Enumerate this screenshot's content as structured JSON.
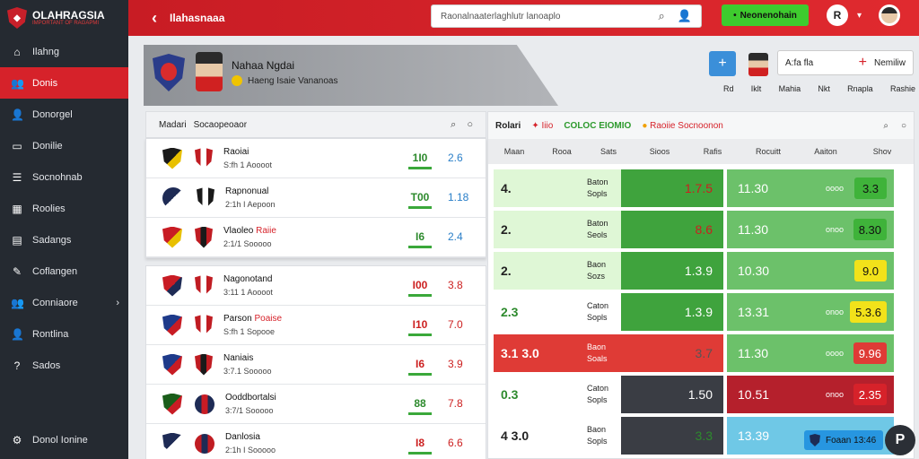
{
  "app": {
    "logo_text": "OLAHRAGSIA",
    "logo_sub": "IMPORTANT OF RAGAPMI",
    "top_title": "Ilahasnaaa"
  },
  "sidebar": {
    "items": [
      {
        "label": "Ilahng",
        "icon": "home-icon",
        "glyph": "⌂"
      },
      {
        "label": "Donis",
        "icon": "people-icon",
        "glyph": "👥"
      },
      {
        "label": "Donorgel",
        "icon": "user-icon",
        "glyph": "👤"
      },
      {
        "label": "Donilie",
        "icon": "card-icon",
        "glyph": "▭"
      },
      {
        "label": "Socnohnab",
        "icon": "list-icon",
        "glyph": "☰"
      },
      {
        "label": "Roolies",
        "icon": "calendar-icon",
        "glyph": "▦"
      },
      {
        "label": "Sadangs",
        "icon": "inbox-icon",
        "glyph": "▤"
      },
      {
        "label": "Coflangen",
        "icon": "tool-icon",
        "glyph": "✎"
      },
      {
        "label": "Conniaore",
        "icon": "group-icon",
        "glyph": "👥"
      },
      {
        "label": "Rontlina",
        "icon": "profile-icon",
        "glyph": "👤"
      },
      {
        "label": "Sados",
        "icon": "help-icon",
        "glyph": "?"
      }
    ],
    "bottom": {
      "label": "Donol Ionine",
      "icon": "settings-icon",
      "glyph": "⚙"
    }
  },
  "topbar": {
    "search_placeholder": "Raonalnaaterlaghlutr lanoaplo",
    "button_label": "Neonenohain",
    "user_initial": "R"
  },
  "hero": {
    "name": "Nahaa Ngdai",
    "sub": "Haeng Isaie Vananoas"
  },
  "controls": {
    "box_text": "A:fa fla",
    "box_right": "Nemiliw",
    "labels": [
      "Rd",
      "Iklt",
      "Mahia",
      "Nkt",
      "Rnapla",
      "Rashie"
    ]
  },
  "left_panel": {
    "header": [
      "Madari",
      "Socaopeoaor"
    ],
    "card1": [
      {
        "t1": "Raoiai",
        "t1_red": "",
        "t2": "S:fh 1 Aoooot",
        "box": "1I0",
        "box_color": "g",
        "val": "2.6",
        "val_color": "b",
        "b1": [
          "#1a1a1a",
          "#e8c000"
        ],
        "b2": [
          "#c01c22",
          "#ffffff"
        ]
      },
      {
        "t1": "Rapnonual",
        "t1_red": "",
        "t2": "2:1h I Aepoon",
        "box": "T00",
        "box_color": "g",
        "val": "1.18",
        "val_color": "b",
        "b1": [
          "#1e2b55",
          "#ffffff"
        ],
        "b2": [
          "#1a1a1a",
          "#ffffff"
        ],
        "round": true
      },
      {
        "t1": "Vlaoleo",
        "t1_red": "Raiie",
        "t2": "2:1/1 Sooooo",
        "box": "I6",
        "box_color": "g",
        "val": "2.4",
        "val_color": "b",
        "b1": [
          "#c81c24",
          "#e8c000"
        ],
        "b2": [
          "#c01c22",
          "#1a1a1a"
        ]
      }
    ],
    "card2": [
      {
        "t1": "Nagonotand",
        "t1_red": "",
        "t2": "3:11 1 Aoooot",
        "box": "I00",
        "box_color": "r",
        "val": "3.8",
        "val_color": "r",
        "b1": [
          "#c81c24",
          "#1e2b55"
        ],
        "b2": [
          "#c01c22",
          "#ffffff"
        ]
      },
      {
        "t1": "Parson",
        "t1_red": "Poaise",
        "t2": "S:fh 1 Sopooe",
        "box": "I10",
        "box_color": "r",
        "val": "7.0",
        "val_color": "r",
        "b1": [
          "#1e3a8a",
          "#c81c24"
        ],
        "b2": [
          "#c01c22",
          "#ffffff"
        ]
      },
      {
        "t1": "Naniais",
        "t1_red": "",
        "t2": "3:7.1 Sooooo",
        "box": "I6",
        "box_color": "r",
        "val": "3.9",
        "val_color": "r",
        "b1": [
          "#1e3a8a",
          "#c81c24"
        ],
        "b2": [
          "#c01c22",
          "#1a1a1a"
        ]
      },
      {
        "t1": "Ooddbortalsi",
        "t1_red": "",
        "t2": "3:7/1 Sooooo",
        "box": "88",
        "box_color": "g",
        "val": "7.8",
        "val_color": "r",
        "b1": [
          "#1a5d1a",
          "#c81c24"
        ],
        "b2": [
          "#1e2b55",
          "#c81c24"
        ],
        "round2": true
      },
      {
        "t1": "Danlosia",
        "t1_red": "",
        "t2": "2:1h I Sooooo",
        "box": "I8",
        "box_color": "r",
        "val": "6.6",
        "val_color": "r",
        "b1": [
          "#1e2b55",
          "#ffffff"
        ],
        "b2": [
          "#c01c22",
          "#1e2b55"
        ],
        "round2": true
      }
    ]
  },
  "right_panel": {
    "header": {
      "title": "Rolari",
      "s1": "Iiio",
      "s2": "COLOC EIOMIO",
      "s3": "Raoiie Socnoonon"
    },
    "cols": [
      "Maan",
      "Rooa",
      "Sats",
      "Sioos",
      "Rafis",
      "Rocuitt",
      "Aaiton",
      "Shov"
    ],
    "rows": [
      {
        "lv": "4.",
        "lbl": [
          "Baton",
          "Sopls"
        ],
        "mid": "1.7.5",
        "right": "11.30",
        "tag": "oooo",
        "pill": "3.3",
        "c1": "#dff7d6",
        "c2": "#3fa33d",
        "c4": "#6cc16a",
        "pillbg": "#3fb33a",
        "midc": "#cc1f1f",
        "lvc": "#222"
      },
      {
        "lv": "2.",
        "lbl": [
          "Baton",
          "Seols"
        ],
        "mid": "8.6",
        "right": "11.30",
        "tag": "onoo",
        "pill": "8.30",
        "c1": "#dff7d6",
        "c2": "#3fa33d",
        "c4": "#6cc16a",
        "pillbg": "#3fb33a",
        "midc": "#cc1f1f",
        "lvc": "#222"
      },
      {
        "lv": "2.",
        "lbl": [
          "Baon",
          "Sozs"
        ],
        "mid": "1.3.9",
        "right": "10.30",
        "tag": "",
        "pill": "9.0",
        "c1": "#dff7d6",
        "c2": "#3fa33d",
        "c4": "#6cc16a",
        "pillbg": "#f2e21a",
        "midc": "#fff",
        "lvc": "#222"
      },
      {
        "lv": "2.3",
        "lbl": [
          "Caton",
          "Sopls"
        ],
        "mid": "1.3.9",
        "right": "13.31",
        "tag": "onoo",
        "pill": "5.3.6",
        "c1": "#ffffff",
        "c2": "#3fa33d",
        "c4": "#6cc16a",
        "pillbg": "#f2e21a",
        "midc": "#fff",
        "lvc": "#2d8a2d"
      },
      {
        "lv": "3.1 3.0",
        "lbl": [
          "Baon",
          "Soals"
        ],
        "mid": "3.7",
        "right": "11.30",
        "tag": "oooo",
        "pill": "9.96",
        "c1": "#df3b36",
        "c2": "#df3b36",
        "c4": "#6cc16a",
        "pillbg": "#df3b36",
        "midc": "#555",
        "lvc": "#fff"
      },
      {
        "lv": "0.3",
        "lbl": [
          "Caton",
          "Sopls"
        ],
        "mid": "1.50",
        "right": "10.51",
        "tag": "onoo",
        "pill": "2.35",
        "c1": "#ffffff",
        "c2": "#3a3d44",
        "c4": "#b5202c",
        "pillbg": "#d6222a",
        "midc": "#fff",
        "lvc": "#2d8a2d"
      },
      {
        "lv": "4 3.0",
        "lbl": [
          "Baon",
          "Sopls"
        ],
        "mid": "3.3",
        "right": "13.39",
        "tag": "",
        "pill": "",
        "c1": "#ffffff",
        "c2": "#3a3d44",
        "c4": "#6fc8e6",
        "pillbg": "",
        "midc": "#2d8a2d",
        "lvc": "#222"
      }
    ]
  },
  "chip": {
    "text": "Foaan 13:46"
  },
  "fab": {
    "label": "P"
  }
}
